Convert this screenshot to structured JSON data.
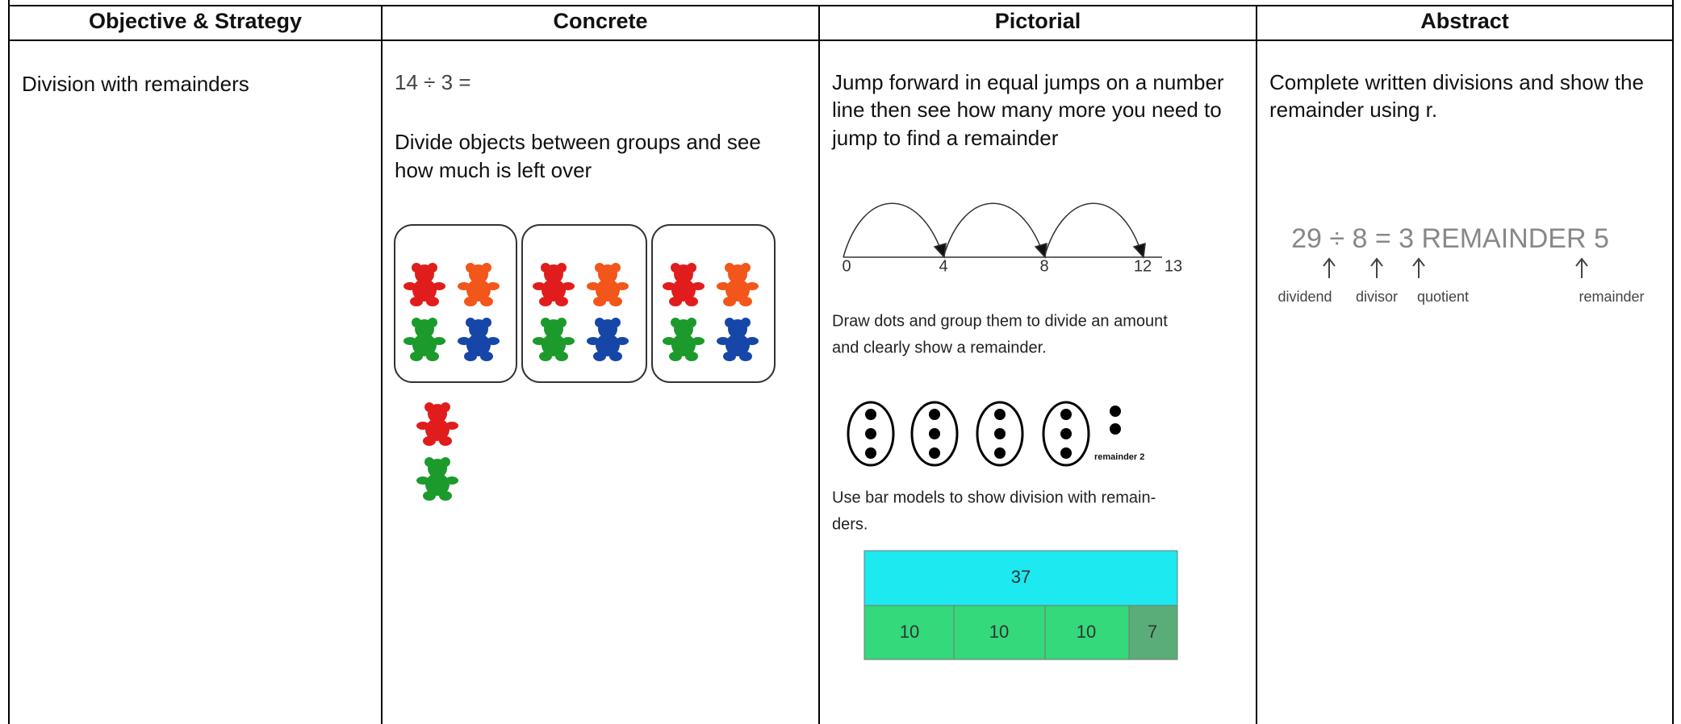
{
  "table": {
    "headers": [
      "Objective & Strategy",
      "Concrete",
      "Pictorial",
      "Abstract"
    ],
    "objective": "Division with remainders",
    "concrete": {
      "equation": "14 ÷ 3 =",
      "lines": [
        "Divide objects between groups and see",
        "how much is left over"
      ]
    },
    "pictorial": {
      "intro": [
        "Jump forward in equal jumps on a number",
        "line then see how many more you need to",
        "jump to find a remainder"
      ],
      "number_line": [
        "0",
        "4",
        "8",
        "12",
        "13"
      ],
      "dots_caption": [
        "Draw dots and group them to divide an amount",
        "and clearly show a remainder."
      ],
      "dots_label": "remainder 2",
      "bar_caption": [
        "Use bar models to show division with remain-",
        "ders."
      ],
      "bar_total": "37",
      "bar_parts": [
        "10",
        "10",
        "10",
        "7"
      ]
    },
    "abstract": {
      "lines": [
        "Complete written divisions and show the",
        "remainder using r."
      ],
      "equation": "29 ÷ 8 = 3 REMAINDER 5",
      "labels": [
        "dividend",
        "divisor",
        "quotient",
        "remainder"
      ]
    }
  }
}
